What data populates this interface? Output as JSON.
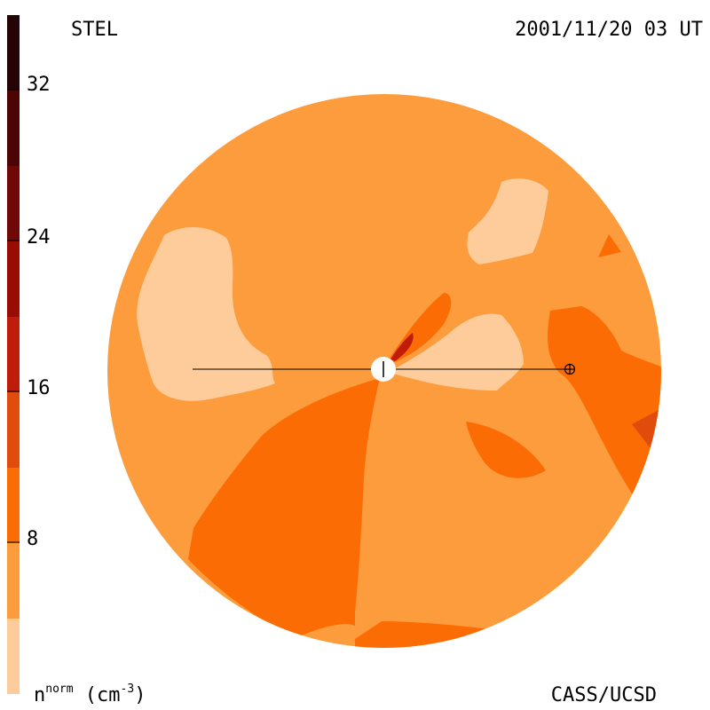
{
  "header": {
    "left": "STEL",
    "right": "2001/11/20 03 UT"
  },
  "footer": {
    "left_base": "n",
    "left_sup": "norm",
    "left_unit": " (cm",
    "left_unit_sup": "-3",
    "left_unit_close": ")",
    "right": "CASS/UCSD"
  },
  "colorbar": {
    "tick_labels": [
      "32",
      "24",
      "16",
      "8"
    ],
    "levels": [
      {
        "range": "0-4",
        "color": "#fdcc9a"
      },
      {
        "range": "4-8",
        "color": "#fc9c3c"
      },
      {
        "range": "8-12",
        "color": "#fc6c04"
      },
      {
        "range": "12-16",
        "color": "#e04c0c"
      },
      {
        "range": "16-20",
        "color": "#c01c0c"
      },
      {
        "range": "20-24",
        "color": "#980c04"
      },
      {
        "range": "24-28",
        "color": "#700808"
      },
      {
        "range": "28-32",
        "color": "#4c0404"
      },
      {
        "range": "32-36",
        "color": "#240404"
      }
    ]
  },
  "colors": {
    "disc_base": "#fc9c3c",
    "light": "#fdcc9a",
    "dark_orange": "#fc6c04",
    "red_orange": "#e04c0c",
    "red": "#c01c0c",
    "sun": "#ffffff",
    "line": "#000000"
  },
  "markers": {
    "sun": "Sun",
    "earth": "Earth"
  }
}
